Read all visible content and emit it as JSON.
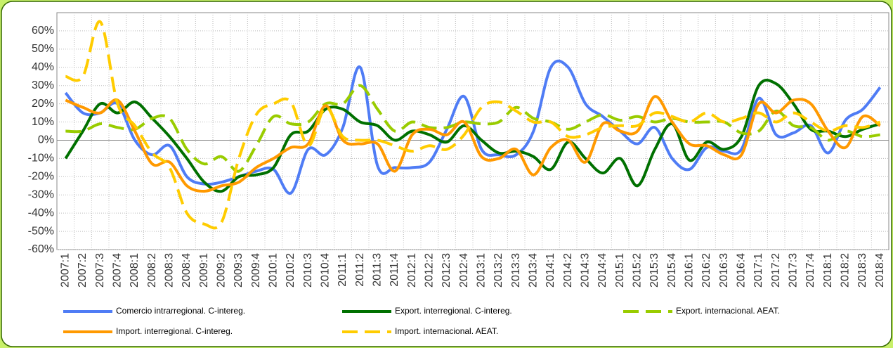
{
  "chart_data": {
    "type": "line",
    "categories": [
      "2007:1",
      "2007:2",
      "2007:3",
      "2007:4",
      "2008:1",
      "2008:2",
      "2008:3",
      "2008:4",
      "2009:1",
      "2009:2",
      "2009:3",
      "2009:4",
      "2010:1",
      "2010:2",
      "2010:3",
      "2010:4",
      "2011:1",
      "2011:2",
      "2011:3",
      "2011:4",
      "2012:1",
      "2012:2",
      "2012:3",
      "2012:4",
      "2013:1",
      "2013:2",
      "2013:3",
      "2013:4",
      "2014:1",
      "2014:2",
      "2014:3",
      "2014:4",
      "2015:1",
      "2015:2",
      "2015:3",
      "2015:4",
      "2016:1",
      "2016:2",
      "2016:3",
      "2016:4",
      "2017:1",
      "2017:2",
      "2017:3",
      "2017:4",
      "2018:1",
      "2018:2",
      "2018:3",
      "2018:4"
    ],
    "series": [
      {
        "name": "Comercio intrarregional. C-intereg.",
        "color": "#4f7cf5",
        "dashed": false,
        "values": [
          26,
          15,
          15,
          20,
          0,
          -8,
          -3,
          -20,
          -24,
          -23,
          -20,
          -17,
          -16,
          -29,
          -5,
          -8,
          7,
          40,
          -14,
          -15,
          -15,
          -12,
          6,
          24,
          -5,
          -8,
          -8,
          5,
          40,
          40,
          20,
          13,
          5,
          -2,
          7,
          -10,
          -16,
          -4,
          -6,
          -5,
          23,
          3,
          4,
          8,
          -7,
          11,
          17,
          29
        ]
      },
      {
        "name": "Export. interregional. C-intereg.",
        "color": "#007000",
        "dashed": false,
        "values": [
          -10,
          5,
          20,
          15,
          21,
          12,
          2,
          -10,
          -23,
          -28,
          -20,
          -19,
          -15,
          3,
          5,
          17,
          17,
          10,
          8,
          0,
          5,
          3,
          -1,
          8,
          0,
          -7,
          -6,
          -9,
          -16,
          -1,
          -10,
          -18,
          -10,
          -25,
          -5,
          9,
          -11,
          -1,
          -5,
          2,
          30,
          31,
          20,
          6,
          5,
          2,
          6,
          9
        ]
      },
      {
        "name": "Export. internacional. AEAT.",
        "color": "#99cc00",
        "dashed": true,
        "values": [
          5,
          5,
          9,
          7,
          6,
          12,
          12,
          -5,
          -13,
          -9,
          -17,
          -3,
          13,
          9,
          10,
          20,
          20,
          30,
          17,
          5,
          10,
          7,
          7,
          10,
          9,
          10,
          18,
          12,
          10,
          6,
          10,
          14,
          11,
          13,
          10,
          12,
          10,
          10,
          10,
          4,
          5,
          16,
          8,
          7,
          0,
          5,
          2,
          3
        ]
      },
      {
        "name": "Import. interregional. C-intereg.",
        "color": "#ff9900",
        "dashed": false,
        "values": [
          22,
          18,
          15,
          22,
          5,
          -13,
          -12,
          -25,
          -28,
          -25,
          -23,
          -15,
          -10,
          -4,
          -2,
          19,
          0,
          -2,
          -2,
          -17,
          3,
          6,
          3,
          10,
          -9,
          -10,
          -5,
          -19,
          -4,
          0,
          -12,
          9,
          5,
          5,
          24,
          10,
          -2,
          -3,
          -8,
          -8,
          20,
          15,
          22,
          20,
          5,
          -4,
          13,
          8
        ]
      },
      {
        "name": "Import. internacional. AEAT.",
        "color": "#ffcc00",
        "dashed": true,
        "values": [
          35,
          35,
          65,
          20,
          8,
          -7,
          -15,
          -40,
          -46,
          -45,
          -10,
          14,
          20,
          21,
          -3,
          18,
          2,
          0,
          0,
          -3,
          -6,
          -3,
          -5,
          3,
          18,
          21,
          16,
          10,
          10,
          2,
          3,
          7,
          8,
          8,
          15,
          13,
          10,
          15,
          10,
          12,
          15,
          10,
          15,
          10,
          5,
          8,
          7,
          10
        ]
      }
    ],
    "ylim": [
      -60,
      70
    ],
    "yticks": [
      {
        "value": -60,
        "label": "-60%"
      },
      {
        "value": -50,
        "label": "-50%"
      },
      {
        "value": -40,
        "label": "-40%"
      },
      {
        "value": -30,
        "label": "-30%"
      },
      {
        "value": -20,
        "label": "-20%"
      },
      {
        "value": -10,
        "label": "-10%"
      },
      {
        "value": 0,
        "label": "0%"
      },
      {
        "value": 10,
        "label": "10%"
      },
      {
        "value": 20,
        "label": "20%"
      },
      {
        "value": 30,
        "label": "30%"
      },
      {
        "value": 40,
        "label": "40%"
      },
      {
        "value": 50,
        "label": "50%"
      },
      {
        "value": 60,
        "label": "60%"
      }
    ],
    "grid": true,
    "legend": "bottom"
  }
}
